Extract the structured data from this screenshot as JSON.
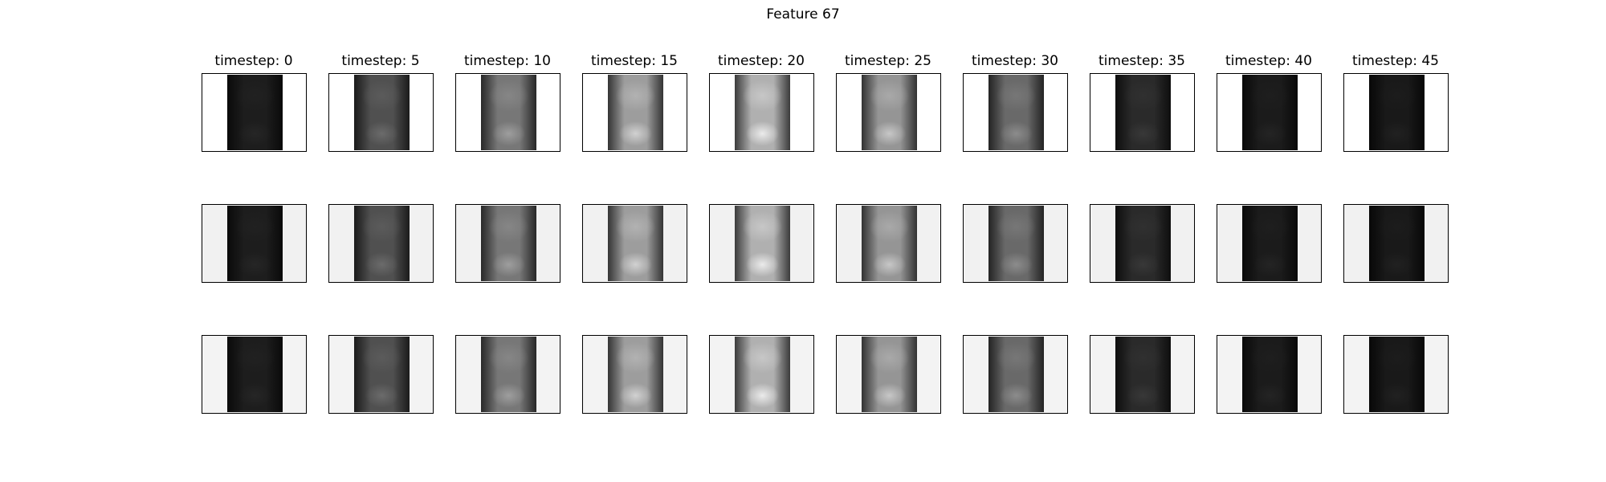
{
  "figure": {
    "title": "Feature 67"
  },
  "columns": [
    {
      "label": "timestep: 0"
    },
    {
      "label": "timestep: 5"
    },
    {
      "label": "timestep: 10"
    },
    {
      "label": "timestep: 15"
    },
    {
      "label": "timestep: 20"
    },
    {
      "label": "timestep: 25"
    },
    {
      "label": "timestep: 30"
    },
    {
      "label": "timestep: 35"
    },
    {
      "label": "timestep: 40"
    },
    {
      "label": "timestep: 45"
    }
  ],
  "rows": [
    {
      "background": "#ffffff"
    },
    {
      "background": "#f1f1f1"
    },
    {
      "background": "#f3f3f3"
    }
  ],
  "colors": {
    "dark": "#0a0a0a",
    "mid": "#6e6e6e",
    "bright": "#e6e6e6"
  },
  "brightness_levels": [
    0.15,
    0.42,
    0.62,
    0.82,
    0.92,
    0.78,
    0.55,
    0.22,
    0.14,
    0.13
  ]
}
